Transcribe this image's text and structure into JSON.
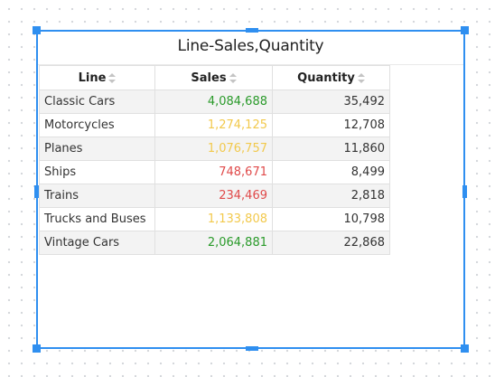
{
  "widget": {
    "title": "Line-Sales,Quantity",
    "accent_color": "#2f8ff0"
  },
  "table": {
    "columns": [
      {
        "label": "Line"
      },
      {
        "label": "Sales"
      },
      {
        "label": "Quantity"
      }
    ],
    "rows": [
      {
        "line": "Classic Cars",
        "sales": "4,084,688",
        "sales_color": "#2a9a2a",
        "quantity": "35,492"
      },
      {
        "line": "Motorcycles",
        "sales": "1,274,125",
        "sales_color": "#f2c94c",
        "quantity": "12,708"
      },
      {
        "line": "Planes",
        "sales": "1,076,757",
        "sales_color": "#f2c94c",
        "quantity": "11,860"
      },
      {
        "line": "Ships",
        "sales": "748,671",
        "sales_color": "#e04a4a",
        "quantity": "8,499"
      },
      {
        "line": "Trains",
        "sales": "234,469",
        "sales_color": "#e04a4a",
        "quantity": "2,818"
      },
      {
        "line": "Trucks and Buses",
        "sales": "1,133,808",
        "sales_color": "#f2c94c",
        "quantity": "10,798"
      },
      {
        "line": "Vintage Cars",
        "sales": "2,064,881",
        "sales_color": "#2a9a2a",
        "quantity": "22,868"
      }
    ]
  }
}
